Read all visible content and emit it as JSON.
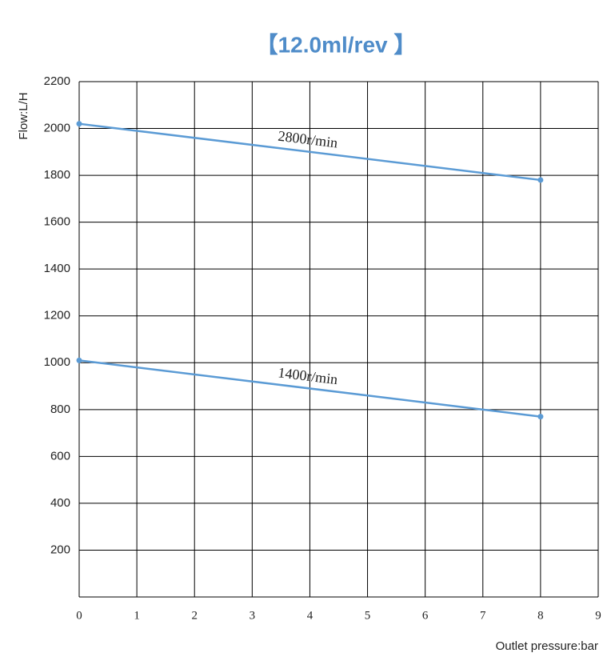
{
  "chart_data": {
    "type": "line",
    "title": "【12.0ml/rev 】",
    "x_label": "Outlet pressure:bar",
    "y_label": "Flow:L/H",
    "x": [
      0,
      8
    ],
    "series": [
      {
        "name": "2800r/min",
        "color": "#5b9bd5",
        "values": [
          2020,
          1780
        ]
      },
      {
        "name": "1400r/min",
        "color": "#5b9bd5",
        "values": [
          1010,
          770
        ]
      }
    ],
    "xlim": [
      0,
      9
    ],
    "xticks": [
      0,
      1,
      2,
      3,
      4,
      5,
      6,
      7,
      8,
      9
    ],
    "ylim": [
      0,
      2200
    ],
    "yticks": [
      200,
      400,
      600,
      800,
      1000,
      1200,
      1400,
      1600,
      1800,
      2000,
      2200
    ],
    "grid": true
  }
}
